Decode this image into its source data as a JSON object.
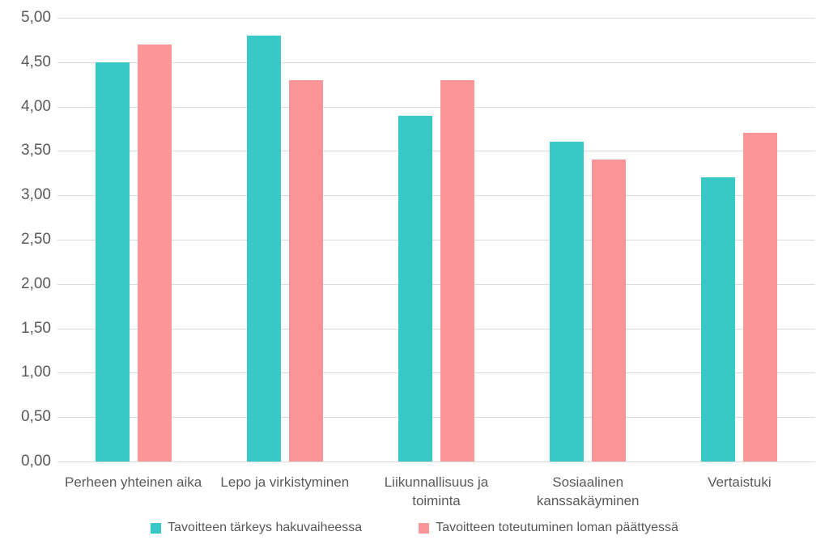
{
  "chart_data": {
    "type": "bar",
    "title": "",
    "xlabel": "",
    "ylabel": "",
    "categories": [
      "Perheen yhteinen aika",
      "Lepo ja virkistyminen",
      "Liikunnallisuus ja toiminta",
      "Sosiaalinen kanssakäyminen",
      "Vertaistuki"
    ],
    "series": [
      {
        "name": "Tavoitteen tärkeys hakuvaiheessa",
        "color": "#38C8C6",
        "values": [
          4.5,
          4.8,
          3.9,
          3.6,
          3.2
        ]
      },
      {
        "name": "Tavoitteen toteutuminen loman päättyessä",
        "color": "#FC9598",
        "values": [
          4.7,
          4.3,
          4.3,
          3.4,
          3.7
        ]
      }
    ],
    "ylim": [
      0,
      5
    ],
    "ytick_step": 0.5,
    "ytick_labels": [
      "0,00",
      "0,50",
      "1,00",
      "1,50",
      "2,00",
      "2,50",
      "3,00",
      "3,50",
      "4,00",
      "4,50",
      "5,00"
    ],
    "grid": true,
    "legend_position": "bottom"
  },
  "colors": {
    "background": "#FFFFFF",
    "gridline": "#DBDBDB",
    "axis_text": "#595959"
  }
}
